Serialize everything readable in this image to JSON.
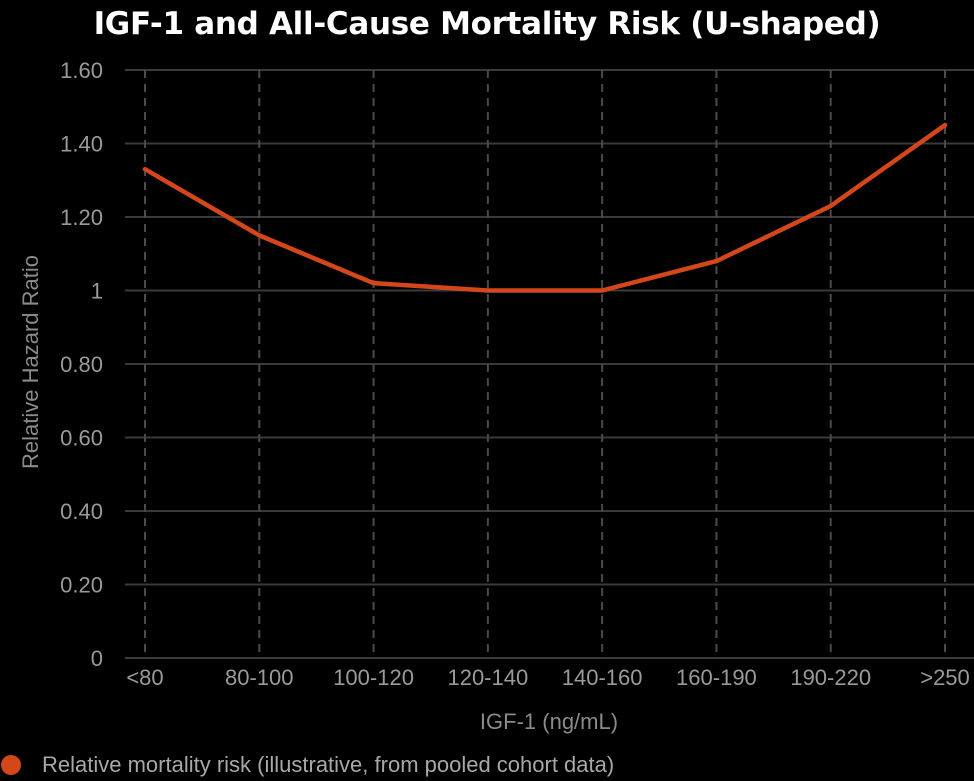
{
  "chart_data": {
    "type": "line",
    "title": "IGF-1 and All-Cause Mortality Risk (U-shaped)",
    "xlabel": "IGF-1 (ng/mL)",
    "ylabel": "Relative Hazard Ratio",
    "categories": [
      "<80",
      "80-100",
      "100-120",
      "120-140",
      "140-160",
      "160-190",
      "190-220",
      ">250"
    ],
    "series": [
      {
        "name": "Relative mortality risk (illustrative, from pooled cohort data)",
        "values": [
          1.33,
          1.15,
          1.02,
          1.0,
          1.0,
          1.08,
          1.23,
          1.45
        ],
        "color": "#d4471a"
      }
    ],
    "ylim": [
      0,
      1.6
    ],
    "yticks": [
      0,
      0.2,
      0.4,
      0.6,
      0.8,
      1,
      1.2,
      1.4,
      1.6
    ],
    "ytick_labels": [
      "0",
      "0.20",
      "0.40",
      "0.60",
      "0.80",
      "1",
      "1.20",
      "1.40",
      "1.60"
    ],
    "grid": true,
    "legend_position": "bottom-left"
  }
}
